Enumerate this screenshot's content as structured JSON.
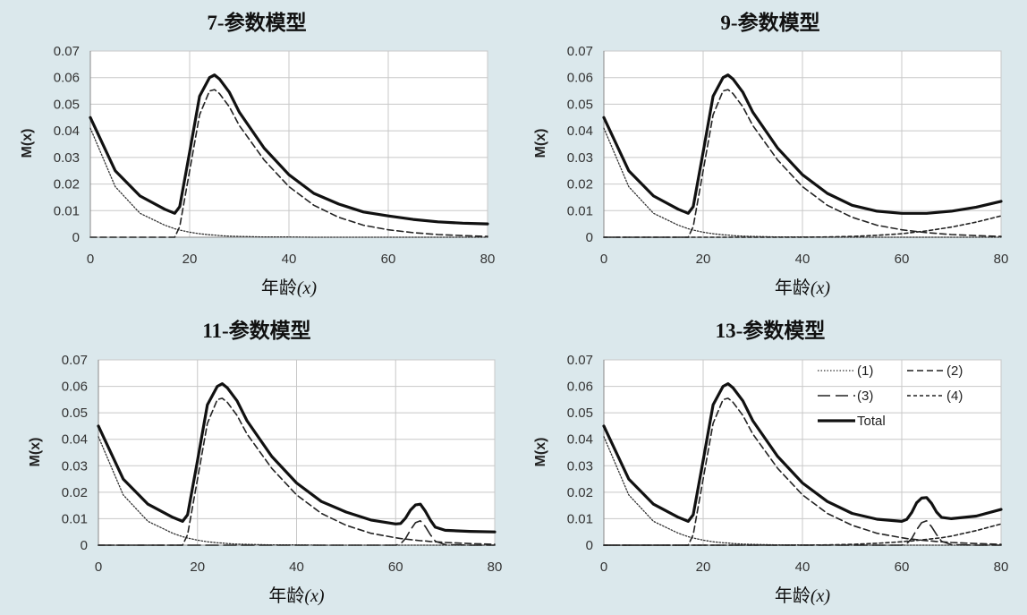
{
  "chart_data": [
    {
      "type": "line",
      "title": "7-参数模型",
      "xlabel": "年龄",
      "xlabel_var": "(x)",
      "ylabel": "M(x)",
      "xlim": [
        0,
        80
      ],
      "ylim": [
        0,
        0.07
      ],
      "xticks": [
        "0",
        "20",
        "40",
        "60",
        "80"
      ],
      "yticks": [
        "0",
        "0.01",
        "0.02",
        "0.03",
        "0.04",
        "0.05",
        "0.06",
        "0.07"
      ],
      "grid": true,
      "x": [
        0,
        5,
        10,
        15,
        17,
        18,
        20,
        22,
        24,
        25,
        26,
        28,
        30,
        35,
        40,
        45,
        50,
        55,
        60,
        65,
        70,
        75,
        80
      ],
      "series": [
        {
          "key": "1",
          "style": "dotted",
          "values": [
            0.041,
            0.019,
            0.009,
            0.0045,
            0.0032,
            0.0027,
            0.0019,
            0.0013,
            0.0009,
            0.0008,
            0.0006,
            0.0004,
            0.0003,
            0.0001,
            0.0001,
            0,
            0,
            0,
            0,
            0,
            0,
            0,
            0
          ]
        },
        {
          "key": "2",
          "style": "dashed",
          "values": [
            0,
            0,
            0,
            0,
            0,
            0.004,
            0.025,
            0.046,
            0.055,
            0.0555,
            0.054,
            0.049,
            0.042,
            0.029,
            0.019,
            0.012,
            0.0075,
            0.0045,
            0.0028,
            0.0017,
            0.001,
            0.0006,
            0.0003
          ]
        },
        {
          "key": "total",
          "style": "solid",
          "values": [
            0.045,
            0.025,
            0.0155,
            0.0105,
            0.009,
            0.0115,
            0.032,
            0.053,
            0.06,
            0.061,
            0.0595,
            0.0545,
            0.047,
            0.0335,
            0.0235,
            0.0165,
            0.0125,
            0.0095,
            0.008,
            0.0067,
            0.0058,
            0.0053,
            0.005
          ]
        }
      ]
    },
    {
      "type": "line",
      "title": "9-参数模型",
      "xlabel": "年龄",
      "xlabel_var": "(x)",
      "ylabel": "M(x)",
      "xlim": [
        0,
        80
      ],
      "ylim": [
        0,
        0.07
      ],
      "xticks": [
        "0",
        "20",
        "40",
        "60",
        "80"
      ],
      "yticks": [
        "0",
        "0.01",
        "0.02",
        "0.03",
        "0.04",
        "0.05",
        "0.06",
        "0.07"
      ],
      "grid": true,
      "x": [
        0,
        5,
        10,
        15,
        17,
        18,
        20,
        22,
        24,
        25,
        26,
        28,
        30,
        35,
        40,
        45,
        50,
        55,
        60,
        65,
        70,
        75,
        80
      ],
      "series": [
        {
          "key": "1",
          "style": "dotted",
          "values": [
            0.041,
            0.019,
            0.009,
            0.0045,
            0.0032,
            0.0027,
            0.0019,
            0.0013,
            0.0009,
            0.0008,
            0.0006,
            0.0004,
            0.0003,
            0.0001,
            0.0001,
            0,
            0,
            0,
            0,
            0,
            0,
            0,
            0
          ]
        },
        {
          "key": "2",
          "style": "dashed",
          "values": [
            0,
            0,
            0,
            0,
            0,
            0.004,
            0.025,
            0.046,
            0.055,
            0.0555,
            0.054,
            0.049,
            0.042,
            0.029,
            0.019,
            0.012,
            0.0075,
            0.0045,
            0.0028,
            0.0017,
            0.001,
            0.0006,
            0.0003
          ]
        },
        {
          "key": "4",
          "style": "shortdash",
          "values": [
            0,
            0,
            0,
            0,
            0,
            0,
            0,
            0,
            0,
            0,
            0,
            0,
            0,
            0,
            0,
            0.0001,
            0.0003,
            0.0007,
            0.0013,
            0.0024,
            0.0038,
            0.0057,
            0.008
          ]
        },
        {
          "key": "total",
          "style": "solid",
          "values": [
            0.045,
            0.025,
            0.0155,
            0.0105,
            0.009,
            0.0115,
            0.032,
            0.053,
            0.06,
            0.061,
            0.0595,
            0.0545,
            0.047,
            0.0335,
            0.0235,
            0.0165,
            0.012,
            0.0098,
            0.009,
            0.009,
            0.0098,
            0.0113,
            0.0135
          ]
        }
      ]
    },
    {
      "type": "line",
      "title": "11-参数模型",
      "xlabel": "年龄",
      "xlabel_var": "(x)",
      "ylabel": "M(x)",
      "xlim": [
        0,
        80
      ],
      "ylim": [
        0,
        0.07
      ],
      "xticks": [
        "0",
        "20",
        "40",
        "60",
        "80"
      ],
      "yticks": [
        "0",
        "0.01",
        "0.02",
        "0.03",
        "0.04",
        "0.05",
        "0.06",
        "0.07"
      ],
      "grid": true,
      "x": [
        0,
        5,
        10,
        15,
        17,
        18,
        20,
        22,
        24,
        25,
        26,
        28,
        30,
        35,
        40,
        45,
        50,
        55,
        60,
        61,
        62,
        63,
        64,
        65,
        66,
        67,
        68,
        70,
        75,
        80
      ],
      "series": [
        {
          "key": "1",
          "style": "dotted",
          "values": [
            0.041,
            0.019,
            0.009,
            0.0045,
            0.0032,
            0.0027,
            0.0019,
            0.0013,
            0.0009,
            0.0008,
            0.0006,
            0.0004,
            0.0003,
            0.0001,
            0.0001,
            0,
            0,
            0,
            0,
            0,
            0,
            0,
            0,
            0,
            0,
            0,
            0,
            0,
            0,
            0
          ]
        },
        {
          "key": "2",
          "style": "dashed",
          "values": [
            0,
            0,
            0,
            0,
            0,
            0.004,
            0.025,
            0.046,
            0.055,
            0.0555,
            0.054,
            0.049,
            0.042,
            0.029,
            0.019,
            0.012,
            0.0075,
            0.0045,
            0.0028,
            0.0025,
            0.0023,
            0.0021,
            0.0019,
            0.0017,
            0.0016,
            0.0014,
            0.0013,
            0.001,
            0.0006,
            0.0003
          ]
        },
        {
          "key": "3",
          "style": "longdash",
          "values": [
            0,
            0,
            0,
            0,
            0,
            0,
            0,
            0,
            0,
            0,
            0,
            0,
            0,
            0,
            0,
            0,
            0,
            0,
            0,
            0.0005,
            0.0025,
            0.0058,
            0.0085,
            0.0092,
            0.007,
            0.004,
            0.0015,
            0.0002,
            0,
            0
          ]
        },
        {
          "key": "total",
          "style": "solid",
          "values": [
            0.045,
            0.025,
            0.0155,
            0.0105,
            0.009,
            0.0115,
            0.032,
            0.053,
            0.06,
            0.061,
            0.0595,
            0.0545,
            0.047,
            0.0335,
            0.0235,
            0.0165,
            0.0125,
            0.0095,
            0.008,
            0.0082,
            0.0102,
            0.0133,
            0.0152,
            0.0155,
            0.0128,
            0.0095,
            0.0068,
            0.0056,
            0.0052,
            0.005
          ]
        }
      ]
    },
    {
      "type": "line",
      "title": "13-参数模型",
      "xlabel": "年龄",
      "xlabel_var": "(x)",
      "ylabel": "M(x)",
      "xlim": [
        0,
        80
      ],
      "ylim": [
        0,
        0.07
      ],
      "xticks": [
        "0",
        "20",
        "40",
        "60",
        "80"
      ],
      "yticks": [
        "0",
        "0.01",
        "0.02",
        "0.03",
        "0.04",
        "0.05",
        "0.06",
        "0.07"
      ],
      "grid": true,
      "legend": {
        "position": "top-right",
        "entries": [
          {
            "label": "(1)",
            "key": "1"
          },
          {
            "label": "(2)",
            "key": "2"
          },
          {
            "label": "(3)",
            "key": "3"
          },
          {
            "label": "(4)",
            "key": "4"
          },
          {
            "label": "Total",
            "key": "total"
          }
        ]
      },
      "x": [
        0,
        5,
        10,
        15,
        17,
        18,
        20,
        22,
        24,
        25,
        26,
        28,
        30,
        35,
        40,
        45,
        50,
        55,
        60,
        61,
        62,
        63,
        64,
        65,
        66,
        67,
        68,
        70,
        75,
        80
      ],
      "series": [
        {
          "key": "1",
          "style": "dotted",
          "values": [
            0.041,
            0.019,
            0.009,
            0.0045,
            0.0032,
            0.0027,
            0.0019,
            0.0013,
            0.0009,
            0.0008,
            0.0006,
            0.0004,
            0.0003,
            0.0001,
            0.0001,
            0,
            0,
            0,
            0,
            0,
            0,
            0,
            0,
            0,
            0,
            0,
            0,
            0,
            0,
            0
          ]
        },
        {
          "key": "2",
          "style": "dashed",
          "values": [
            0,
            0,
            0,
            0,
            0,
            0.004,
            0.025,
            0.046,
            0.055,
            0.0555,
            0.054,
            0.049,
            0.042,
            0.029,
            0.019,
            0.012,
            0.0075,
            0.0045,
            0.0028,
            0.0025,
            0.0023,
            0.0021,
            0.0019,
            0.0017,
            0.0016,
            0.0014,
            0.0013,
            0.001,
            0.0006,
            0.0003
          ]
        },
        {
          "key": "3",
          "style": "longdash",
          "values": [
            0,
            0,
            0,
            0,
            0,
            0,
            0,
            0,
            0,
            0,
            0,
            0,
            0,
            0,
            0,
            0,
            0,
            0,
            0,
            0.0005,
            0.0025,
            0.0058,
            0.0085,
            0.0092,
            0.007,
            0.004,
            0.0015,
            0.0002,
            0,
            0
          ]
        },
        {
          "key": "4",
          "style": "shortdash",
          "values": [
            0,
            0,
            0,
            0,
            0,
            0,
            0,
            0,
            0,
            0,
            0,
            0,
            0,
            0,
            0,
            0.0001,
            0.0003,
            0.0007,
            0.0013,
            0.0015,
            0.0016,
            0.0018,
            0.002,
            0.0022,
            0.0024,
            0.0026,
            0.0028,
            0.0034,
            0.0055,
            0.008
          ]
        },
        {
          "key": "total",
          "style": "solid",
          "values": [
            0.045,
            0.025,
            0.0155,
            0.0105,
            0.009,
            0.0115,
            0.032,
            0.053,
            0.06,
            0.061,
            0.0595,
            0.0545,
            0.047,
            0.0335,
            0.0235,
            0.0165,
            0.012,
            0.0098,
            0.009,
            0.0097,
            0.0123,
            0.016,
            0.0178,
            0.018,
            0.0158,
            0.0125,
            0.0105,
            0.01,
            0.011,
            0.0135
          ]
        }
      ]
    }
  ]
}
